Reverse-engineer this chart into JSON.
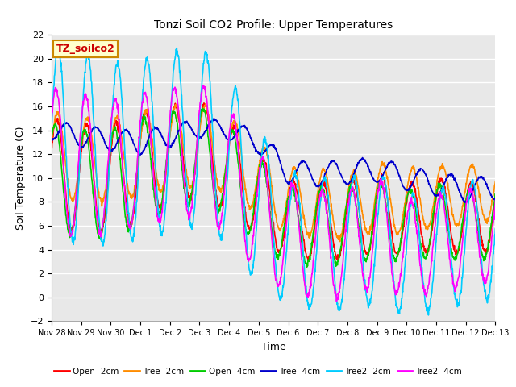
{
  "title": "Tonzi Soil CO2 Profile: Upper Temperatures",
  "xlabel": "Time",
  "ylabel": "Soil Temperature (C)",
  "ylim": [
    -2,
    22
  ],
  "xlim": [
    0,
    15
  ],
  "plot_bg_color": "#e8e8e8",
  "fig_bg_color": "#ffffff",
  "grid_color": "#ffffff",
  "label_box_text": "TZ_soilco2",
  "label_box_bg": "#ffffcc",
  "label_box_border": "#cc8800",
  "label_box_text_color": "#cc0000",
  "x_tick_labels": [
    "Nov 28",
    "Nov 29",
    "Nov 30",
    "Dec 1",
    "Dec 2",
    "Dec 3",
    "Dec 4",
    "Dec 5",
    "Dec 6",
    "Dec 7",
    "Dec 8",
    "Dec 9",
    "Dec 10",
    "Dec 11",
    "Dec 12",
    "Dec 13"
  ],
  "series": {
    "Open -2cm": {
      "color": "#ff0000",
      "lw": 1.2
    },
    "Tree -2cm": {
      "color": "#ff8c00",
      "lw": 1.2
    },
    "Open -4cm": {
      "color": "#00cc00",
      "lw": 1.2
    },
    "Tree -4cm": {
      "color": "#0000cc",
      "lw": 1.2
    },
    "Tree2 -2cm": {
      "color": "#00ccff",
      "lw": 1.2
    },
    "Tree2 -4cm": {
      "color": "#ff00ff",
      "lw": 1.2
    }
  },
  "yticks": [
    -2,
    0,
    2,
    4,
    6,
    8,
    10,
    12,
    14,
    16,
    18,
    20,
    22
  ]
}
